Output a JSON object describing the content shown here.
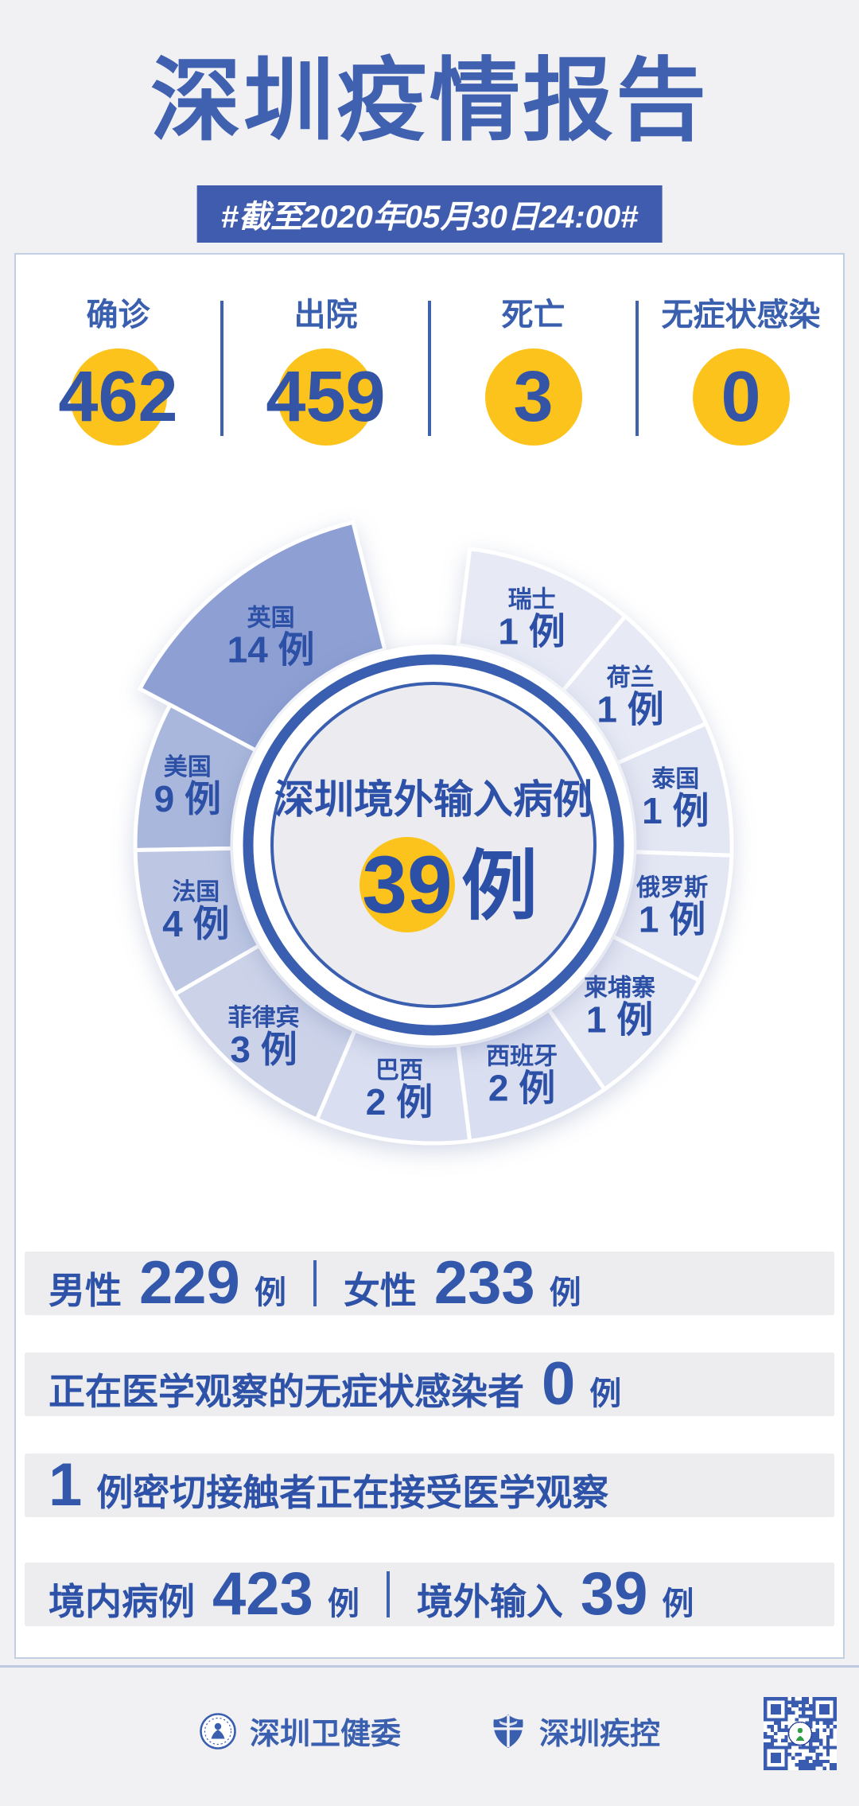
{
  "header": {
    "title": "深圳疫情报告",
    "badge": "#截至2020年05月30日24:00#"
  },
  "stats": [
    {
      "label": "确诊",
      "value": "462"
    },
    {
      "label": "出院",
      "value": "459"
    },
    {
      "label": "死亡",
      "value": "3"
    },
    {
      "label": "无症状感染",
      "value": "0"
    }
  ],
  "chart_data": {
    "type": "pie",
    "title": "深圳境外输入病例",
    "total_value": "39",
    "total_unit": "例",
    "unit": "例",
    "legend_position": "on-slice",
    "series": [
      {
        "name": "英国",
        "value": 14,
        "color": "#8d9fd3"
      },
      {
        "name": "美国",
        "value": 9,
        "color": "#a9b7dc"
      },
      {
        "name": "法国",
        "value": 4,
        "color": "#bdc7e4"
      },
      {
        "name": "菲律宾",
        "value": 3,
        "color": "#ccd3e9"
      },
      {
        "name": "巴西",
        "value": 2,
        "color": "#d9def0"
      },
      {
        "name": "西班牙",
        "value": 2,
        "color": "#d9def0"
      },
      {
        "name": "柬埔寨",
        "value": 1,
        "color": "#e3e6f3"
      },
      {
        "name": "俄罗斯",
        "value": 1,
        "color": "#e3e6f3"
      },
      {
        "name": "泰国",
        "value": 1,
        "color": "#e3e6f3"
      },
      {
        "name": "荷兰",
        "value": 1,
        "color": "#e7eaf5"
      },
      {
        "name": "瑞士",
        "value": 1,
        "color": "#e7eaf5"
      }
    ]
  },
  "rows": [
    {
      "segments": [
        {
          "t": "label",
          "v": "男性"
        },
        {
          "t": "num",
          "v": "229"
        },
        {
          "t": "unit",
          "v": "例"
        },
        {
          "t": "div"
        },
        {
          "t": "label",
          "v": "女性"
        },
        {
          "t": "num",
          "v": "233"
        },
        {
          "t": "unit",
          "v": "例"
        }
      ]
    },
    {
      "segments": [
        {
          "t": "label",
          "v": "正在医学观察的无症状感染者"
        },
        {
          "t": "num",
          "v": "0"
        },
        {
          "t": "unit",
          "v": "例"
        }
      ]
    },
    {
      "segments": [
        {
          "t": "num",
          "v": "1"
        },
        {
          "t": "label",
          "v": "例密切接触者正在接受医学观察"
        }
      ]
    },
    {
      "segments": [
        {
          "t": "label",
          "v": "境内病例"
        },
        {
          "t": "num",
          "v": "423"
        },
        {
          "t": "unit",
          "v": "例"
        },
        {
          "t": "div"
        },
        {
          "t": "label",
          "v": "境外输入"
        },
        {
          "t": "num",
          "v": "39"
        },
        {
          "t": "unit",
          "v": "例"
        }
      ]
    }
  ],
  "footer": {
    "orgs": [
      {
        "name": "深圳卫健委",
        "icon": "health-commission-seal-icon"
      },
      {
        "name": "深圳疾控",
        "icon": "cdc-shield-icon"
      }
    ],
    "qr_icon": "wechat-qr-code"
  },
  "colors": {
    "primary_blue": "#3a5cab",
    "title_blue": "#4060b0",
    "number_blue": "#3358ab",
    "accent_yellow": "#fcc31c",
    "bar_gray": "#ededf0",
    "page_bg": "#f1f1f4",
    "card_border": "#c2cfe3"
  }
}
